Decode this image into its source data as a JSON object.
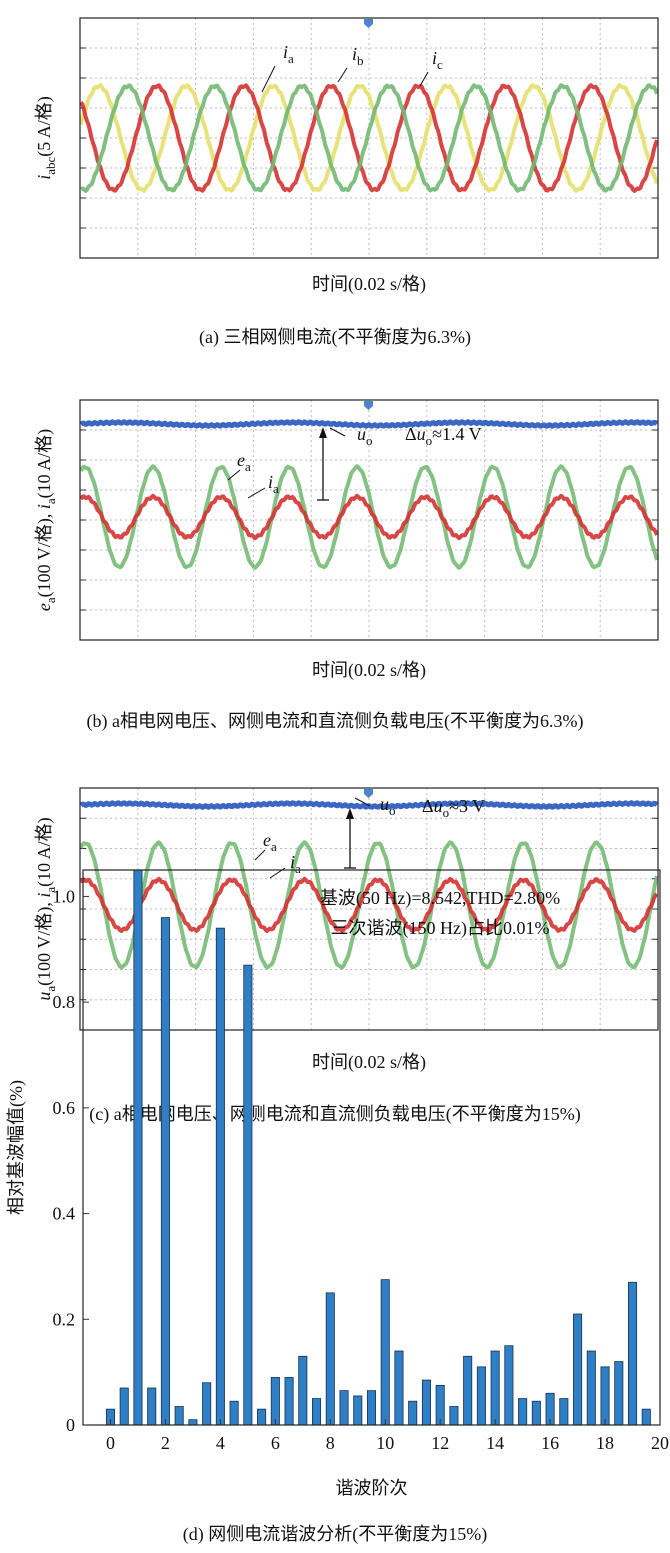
{
  "panels": [
    {
      "ylabel": [
        {
          "var": "i",
          "sub": "abc",
          "text": "(5 A/格)"
        }
      ],
      "labels": [
        {
          "var": "i",
          "sub": "a"
        },
        {
          "var": "i",
          "sub": "b"
        },
        {
          "var": "i",
          "sub": "c"
        }
      ],
      "xlabel": "时间(0.02 s/格)",
      "caption": "(a) 三相网侧电流(不平衡度为6.3%)"
    },
    {
      "ylabel": [
        {
          "var": "e",
          "sub": "a",
          "text": "(100 V/格), "
        },
        {
          "var": "i",
          "sub": "a",
          "text": "(10 A/格)"
        }
      ],
      "labels": [
        {
          "var": "e",
          "sub": "a"
        },
        {
          "var": "i",
          "sub": "a"
        },
        {
          "var": "u",
          "sub": "o"
        },
        {
          "pre": "Δ",
          "var": "u",
          "sub": "o",
          "text": "≈1.4 V"
        }
      ],
      "xlabel": "时间(0.02 s/格)",
      "caption": "(b) a相电网电压、网侧电流和直流侧负载电压(不平衡度为6.3%)"
    },
    {
      "ylabel": [
        {
          "var": "u",
          "sub": "a",
          "text": "(100 V/格), "
        },
        {
          "var": "i",
          "sub": "a",
          "text": "(10 A/格)"
        }
      ],
      "labels": [
        {
          "var": "e",
          "sub": "a"
        },
        {
          "var": "i",
          "sub": "a"
        },
        {
          "var": "u",
          "sub": "o"
        },
        {
          "pre": "Δ",
          "var": "u",
          "sub": "o",
          "text": "≈3 V"
        }
      ],
      "xlabel": "时间(0.02 s/格)",
      "caption": "(c) a相电网电压、网侧电流和直流侧负载电压(不平衡度为15%)"
    }
  ],
  "chart_data": {
    "type": "bar",
    "x": [
      0,
      0.5,
      1,
      1.5,
      2,
      2.5,
      3,
      3.5,
      4,
      4.5,
      5,
      5.5,
      6,
      6.5,
      7,
      7.5,
      8,
      8.5,
      9,
      9.5,
      10,
      10.5,
      11,
      11.5,
      12,
      12.5,
      13,
      13.5,
      14,
      14.5,
      15,
      15.5,
      16,
      16.5,
      17,
      17.5,
      18,
      18.5,
      19,
      19.5
    ],
    "values": [
      0.03,
      0.07,
      1.05,
      0.07,
      0.96,
      0.035,
      0.01,
      0.08,
      0.94,
      0.045,
      0.87,
      0.03,
      0.09,
      0.09,
      0.13,
      0.05,
      0.25,
      0.065,
      0.055,
      0.065,
      0.275,
      0.14,
      0.045,
      0.085,
      0.075,
      0.035,
      0.13,
      0.11,
      0.14,
      0.15,
      0.05,
      0.045,
      0.06,
      0.05,
      0.21,
      0.14,
      0.11,
      0.12,
      0.27,
      0.03
    ],
    "color": "#2f7fc6",
    "xlim": [
      -1,
      20
    ],
    "ylim": [
      0,
      1.05
    ],
    "xticks": [
      0,
      2,
      4,
      6,
      8,
      10,
      12,
      14,
      16,
      18,
      20
    ],
    "yticks": [
      0,
      0.2,
      0.4,
      0.6,
      0.8,
      {
        "value": 1,
        "label": "1.0"
      }
    ],
    "xlabel": "谐波阶次",
    "ylabel": "相对基波幅值(%)",
    "annotations": [
      "基波(50 Hz)=8.542,THD=2.80%",
      "三次谐波(150 Hz)占比0.01%"
    ],
    "caption": "(d) 网侧电流谐波分析(不平衡度为15%)"
  }
}
